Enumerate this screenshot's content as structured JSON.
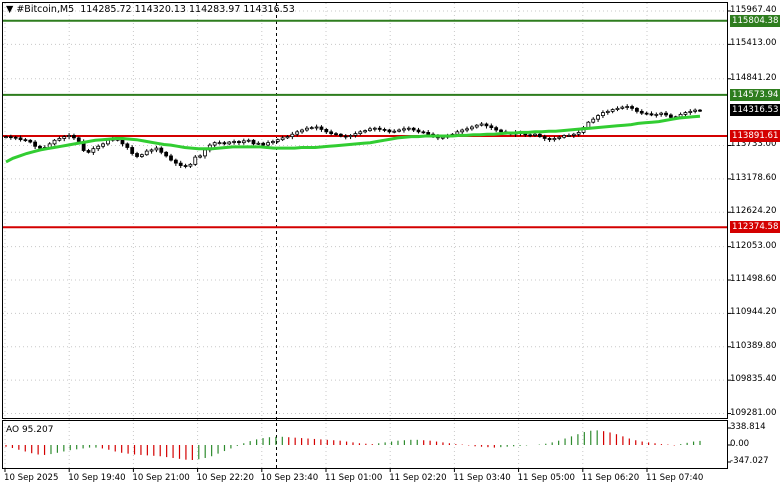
{
  "header": {
    "arrow_icon": "triangle-down-icon",
    "symbol": "#Bitcoin,M5",
    "ohlc": "114285.72 114320.13 114283.97 114316.53"
  },
  "price_axis": {
    "ticks": [
      "115967.40",
      "115413.00",
      "114841.20",
      "113733.00",
      "113178.60",
      "112624.20",
      "112053.00",
      "111498.60",
      "110944.20",
      "110389.80",
      "109835.40",
      "109281.00"
    ]
  },
  "levels": [
    {
      "label": "115804.38",
      "value": 115804.38,
      "color": "#2e7d1e"
    },
    {
      "label": "114573.94",
      "value": 114573.94,
      "color": "#2e7d1e"
    },
    {
      "label": "113891.61",
      "value": 113891.61,
      "color": "#d40000"
    },
    {
      "label": "112374.58",
      "value": 112374.58,
      "color": "#d40000"
    }
  ],
  "current_price": {
    "label": "114316.53",
    "value": 114316.53
  },
  "time_axis": {
    "ticks": [
      "10 Sep 2025",
      "10 Sep 19:40",
      "10 Sep 21:00",
      "10 Sep 22:20",
      "10 Sep 23:40",
      "11 Sep 01:00",
      "11 Sep 02:20",
      "11 Sep 03:40",
      "11 Sep 05:00",
      "11 Sep 06:20",
      "11 Sep 07:40"
    ]
  },
  "oscillator": {
    "title": "AO 95.207",
    "ticks": [
      "338.814",
      "0.00",
      "-347.027"
    ]
  },
  "colors": {
    "candle": "#000000",
    "moving_average": "#32cd32",
    "ao_up": "#2e8b2e",
    "ao_down": "#d40000",
    "grid": "#c8c8c8"
  },
  "chart_data": {
    "type": "candlestick",
    "y_range": [
      109281,
      116100
    ],
    "x_labels": [
      "10 Sep 2025",
      "10 Sep 19:40",
      "10 Sep 21:00",
      "10 Sep 22:20",
      "10 Sep 23:40",
      "11 Sep 01:00",
      "11 Sep 02:20",
      "11 Sep 03:40",
      "11 Sep 05:00",
      "11 Sep 06:20",
      "11 Sep 07:40"
    ],
    "close": [
      113880,
      113870,
      113860,
      113830,
      113820,
      113790,
      113720,
      113690,
      113700,
      113760,
      113820,
      113850,
      113880,
      113900,
      113860,
      113800,
      113650,
      113620,
      113680,
      113720,
      113760,
      113820,
      113850,
      113820,
      113760,
      113700,
      113600,
      113550,
      113580,
      113640,
      113660,
      113690,
      113620,
      113560,
      113490,
      113440,
      113400,
      113390,
      113420,
      113540,
      113560,
      113660,
      113740,
      113780,
      113780,
      113760,
      113790,
      113800,
      113780,
      113810,
      113820,
      113760,
      113770,
      113740,
      113780,
      113800,
      113830,
      113860,
      113880,
      113920,
      113960,
      113990,
      114020,
      114030,
      114040,
      114000,
      113960,
      113930,
      113920,
      113890,
      113880,
      113900,
      113930,
      113960,
      113980,
      114010,
      114020,
      114000,
      113990,
      113960,
      113970,
      113990,
      114010,
      114020,
      113990,
      113960,
      113950,
      113920,
      113900,
      113860,
      113870,
      113900,
      113920,
      113960,
      113990,
      114010,
      114040,
      114070,
      114090,
      114060,
      114030,
      113990,
      113960,
      113940,
      113920,
      113950,
      113930,
      113910,
      113900,
      113920,
      113880,
      113850,
      113830,
      113850,
      113870,
      113900,
      113900,
      113920,
      113950,
      114030,
      114120,
      114170,
      114230,
      114280,
      114300,
      114330,
      114350,
      114370,
      114380,
      114350,
      114300,
      114270,
      114260,
      114240,
      114250,
      114270,
      114240,
      114200,
      114210,
      114250,
      114280,
      114300,
      114320,
      114316.53
    ],
    "ma": [
      113460,
      113520,
      113560,
      113600,
      113630,
      113660,
      113680,
      113700,
      113720,
      113740,
      113760,
      113780,
      113800,
      113820,
      113830,
      113840,
      113850,
      113850,
      113840,
      113830,
      113810,
      113790,
      113770,
      113750,
      113740,
      113720,
      113700,
      113690,
      113680,
      113680,
      113680,
      113690,
      113700,
      113710,
      113710,
      113710,
      113710,
      113710,
      113700,
      113690,
      113690,
      113690,
      113690,
      113700,
      113700,
      113700,
      113710,
      113720,
      113730,
      113740,
      113750,
      113760,
      113770,
      113780,
      113800,
      113820,
      113840,
      113860,
      113870,
      113880,
      113880,
      113890,
      113890,
      113890,
      113890,
      113890,
      113900,
      113900,
      113910,
      113910,
      113920,
      113920,
      113930,
      113940,
      113940,
      113950,
      113950,
      113960,
      113960,
      113970,
      113970,
      113980,
      113990,
      114000,
      114010,
      114020,
      114030,
      114040,
      114050,
      114060,
      114070,
      114080,
      114100,
      114110,
      114120,
      114130,
      114150,
      114170,
      114190,
      114200,
      114210,
      114220
    ],
    "ao": [
      -40,
      -70,
      -110,
      -150,
      -190,
      -220,
      -230,
      -210,
      -180,
      -150,
      -120,
      -100,
      -80,
      -60,
      -60,
      -80,
      -110,
      -150,
      -180,
      -200,
      -220,
      -230,
      -240,
      -250,
      -260,
      -280,
      -300,
      -320,
      -340,
      -347,
      -330,
      -300,
      -260,
      -200,
      -140,
      -80,
      -20,
      40,
      90,
      130,
      160,
      180,
      190,
      190,
      180,
      170,
      160,
      150,
      140,
      130,
      120,
      110,
      100,
      80,
      60,
      40,
      30,
      20,
      40,
      60,
      80,
      100,
      110,
      120,
      120,
      110,
      100,
      80,
      60,
      40,
      20,
      10,
      -10,
      -30,
      -40,
      -50,
      -60,
      -50,
      -40,
      -30,
      -20,
      -10,
      0,
      10,
      30,
      60,
      100,
      150,
      200,
      250,
      300,
      330,
      338,
      320,
      290,
      250,
      200,
      150,
      110,
      80,
      60,
      40,
      20,
      10,
      -10,
      20,
      50,
      80,
      95
    ]
  }
}
